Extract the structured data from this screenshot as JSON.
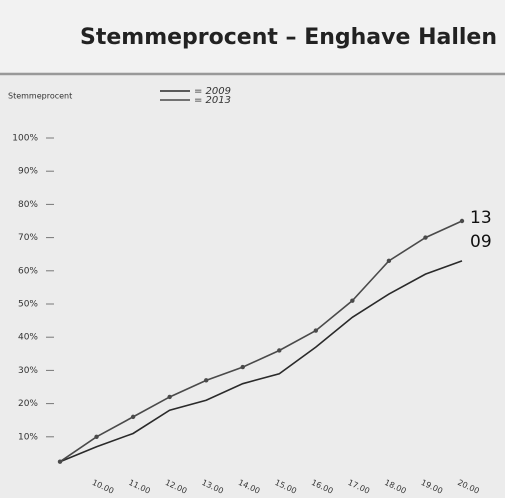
{
  "chart_data": {
    "type": "line",
    "title": "Stemmeprocent – Enghave Hallen",
    "y_label": "Stemmeprocent",
    "categories": [
      null,
      "10.00",
      "11.00",
      "12.00",
      "13.00",
      "14.00",
      "15.00",
      "16.00",
      "17.00",
      "18.00",
      "19.00",
      "20.00"
    ],
    "series": [
      {
        "name": "= 2009",
        "color": "#2a2a2a",
        "markers": false,
        "values": [
          2.5,
          7,
          11,
          18,
          21,
          26,
          29,
          37,
          46,
          53,
          59,
          63
        ]
      },
      {
        "name": "= 2013",
        "color": "#4a4a4a",
        "markers": true,
        "values": [
          2.5,
          10,
          16,
          22,
          27,
          31,
          36,
          42,
          51,
          63,
          70,
          75
        ]
      }
    ],
    "annotations": [
      "13",
      "09"
    ],
    "ylim": [
      0,
      100
    ],
    "yticks": [
      {
        "value": 10,
        "label": "10%"
      },
      {
        "value": 20,
        "label": "20%"
      },
      {
        "value": 30,
        "label": "30%"
      },
      {
        "value": 40,
        "label": "40%"
      },
      {
        "value": 50,
        "label": "50%"
      },
      {
        "value": 60,
        "label": "60%"
      },
      {
        "value": 70,
        "label": "70%"
      },
      {
        "value": 80,
        "label": "80%"
      },
      {
        "value": 90,
        "label": "90%"
      },
      {
        "value": 100,
        "label": "100%"
      }
    ],
    "grid": false
  }
}
